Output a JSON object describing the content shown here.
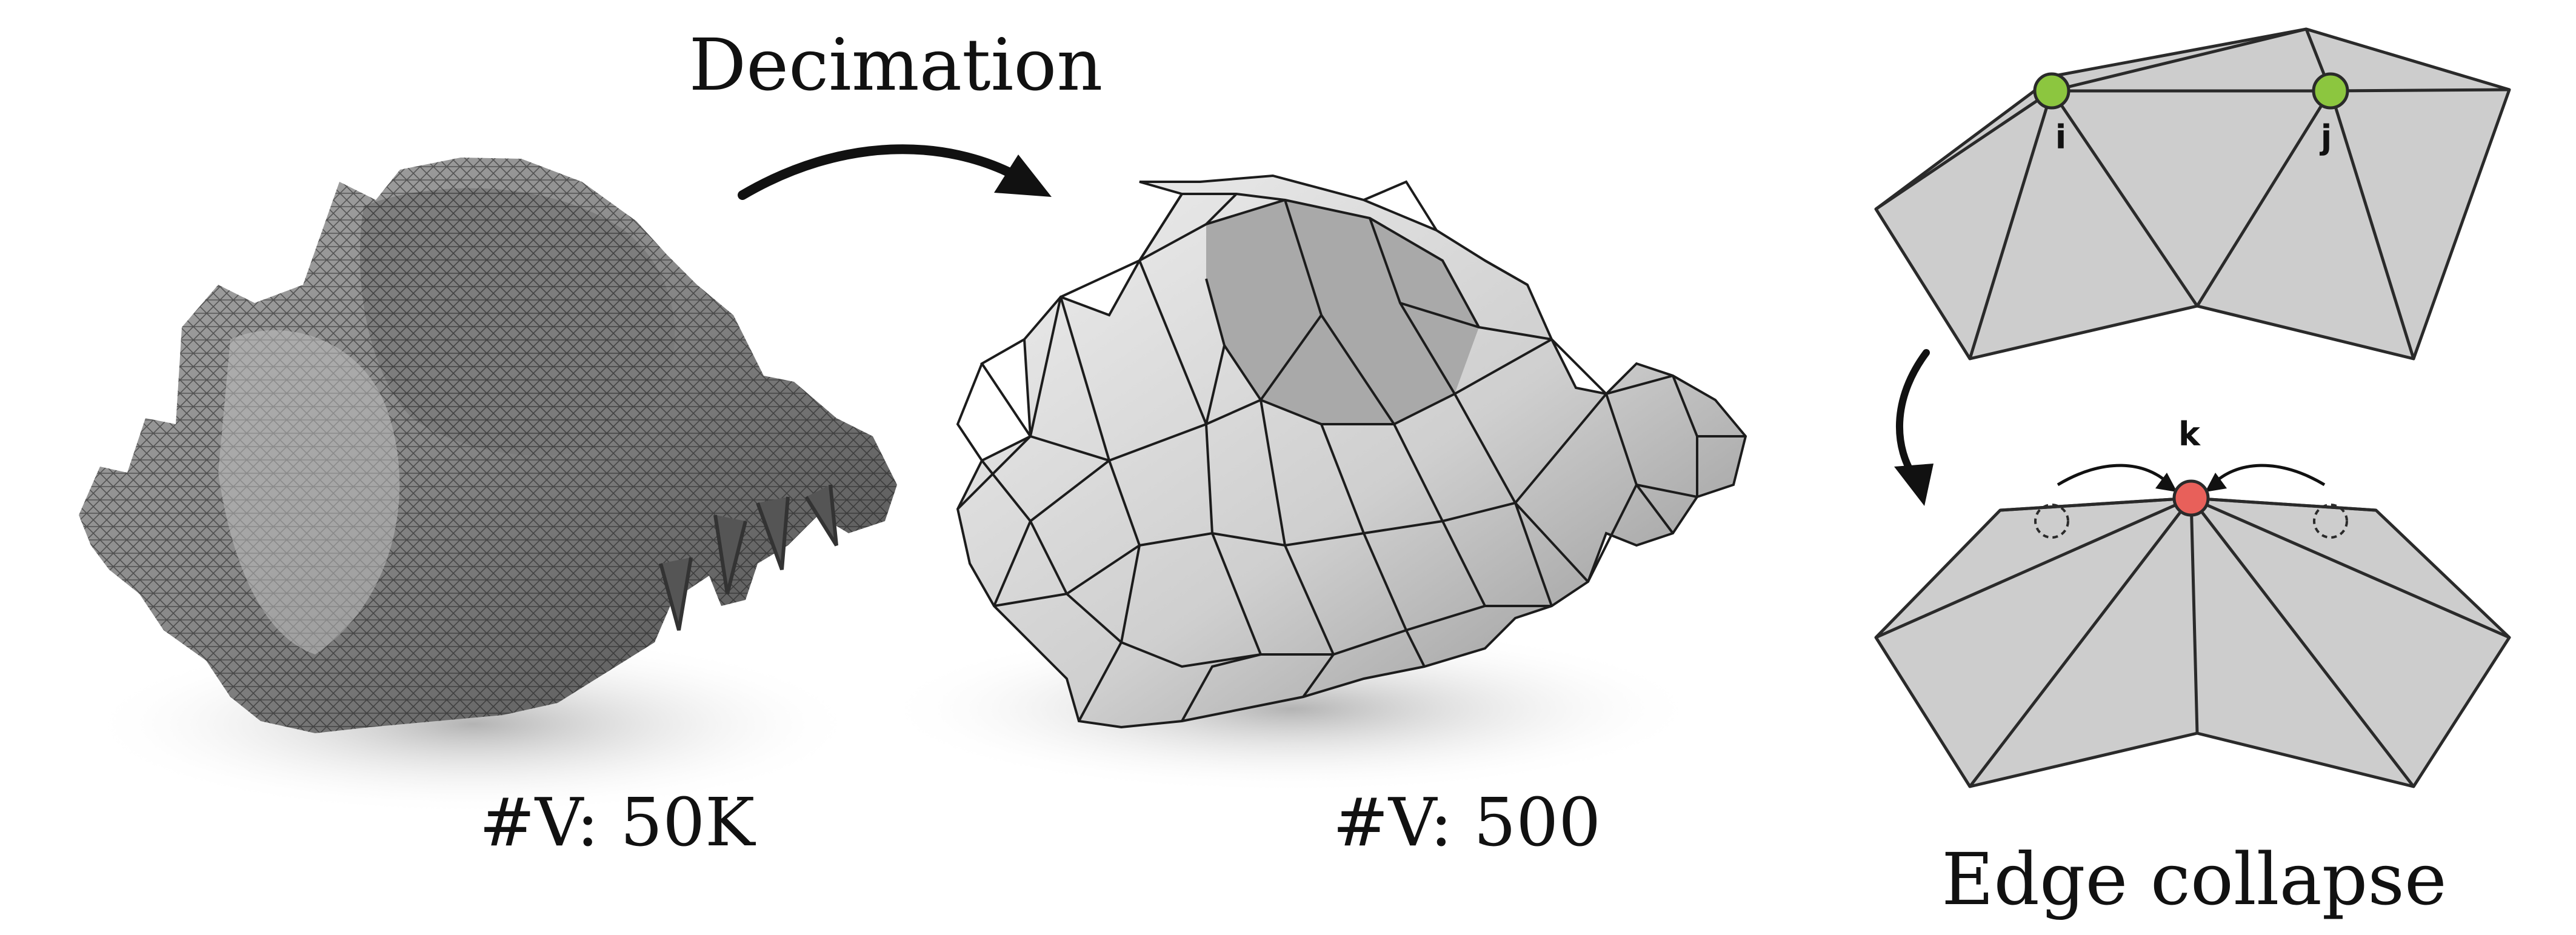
{
  "figure": {
    "decimation_label": "Decimation",
    "left_vertex_count": "#V: 50K",
    "right_vertex_count": "#V: 500",
    "edge_collapse_label": "Edge collapse",
    "vertex_i_label": "i",
    "vertex_j_label": "j",
    "vertex_k_label": "k"
  },
  "colors": {
    "vertex_before": "#8cc63f",
    "vertex_after": "#e8605a",
    "mesh_face": "#cdcdcd",
    "mesh_edge": "#2a2a2a"
  }
}
